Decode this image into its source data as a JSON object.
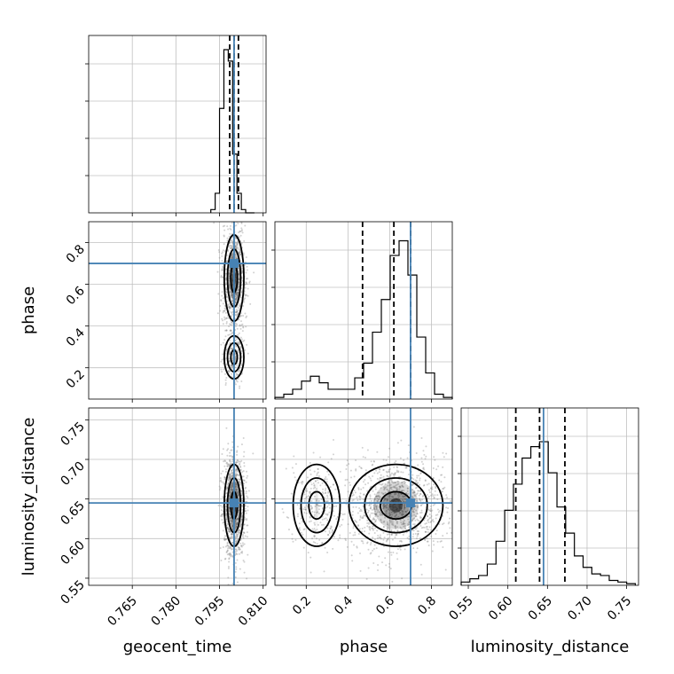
{
  "chart_data": {
    "type": "corner",
    "parameters": [
      "geocent_time",
      "phase",
      "luminosity_distance"
    ],
    "colors": {
      "truth": "#4682b4",
      "hist": "#000000",
      "grid": "#c0c0c0",
      "samples": "#7f7f7f"
    },
    "truth": {
      "geocent_time": 0.8,
      "phase": 0.7,
      "luminosity_distance": 0.645
    },
    "quantiles": {
      "geocent_time": [
        0.7985,
        0.8,
        0.8015
      ],
      "phase": [
        0.47,
        0.62,
        0.7
      ],
      "luminosity_distance": [
        0.61,
        0.64,
        0.672
      ]
    },
    "axes": {
      "geocent_time": {
        "range": [
          0.75,
          0.811
        ],
        "ticks": [
          "0.765",
          "0.780",
          "0.795",
          "0.810"
        ],
        "tick_values": [
          0.765,
          0.78,
          0.795,
          0.81
        ],
        "label": "geocent_time"
      },
      "phase": {
        "range": [
          0.05,
          0.9
        ],
        "ticks": [
          "0.2",
          "0.4",
          "0.6",
          "0.8"
        ],
        "tick_values": [
          0.2,
          0.4,
          0.6,
          0.8
        ],
        "label": "phase"
      },
      "luminosity_distance": {
        "range": [
          0.541,
          0.765
        ],
        "ticks": [
          "0.55",
          "0.60",
          "0.65",
          "0.70",
          "0.75"
        ],
        "tick_values": [
          0.55,
          0.6,
          0.65,
          0.7,
          0.75
        ],
        "label": "luminosity_distance"
      }
    },
    "histograms": {
      "geocent_time": {
        "edges": [
          0.792,
          0.7935,
          0.795,
          0.7965,
          0.798,
          0.7995,
          0.801,
          0.8025,
          0.804,
          0.8055,
          0.807
        ],
        "counts": [
          0.02,
          0.12,
          0.64,
          1.0,
          0.93,
          0.36,
          0.12,
          0.02,
          0.0,
          0.0
        ]
      },
      "phase": {
        "edges": [
          0.05,
          0.0925,
          0.135,
          0.1775,
          0.22,
          0.2625,
          0.305,
          0.3475,
          0.39,
          0.4325,
          0.475,
          0.5175,
          0.56,
          0.6025,
          0.645,
          0.6875,
          0.73,
          0.7725,
          0.815,
          0.8575,
          0.9
        ],
        "counts": [
          0.01,
          0.03,
          0.06,
          0.11,
          0.14,
          0.1,
          0.06,
          0.06,
          0.06,
          0.13,
          0.22,
          0.41,
          0.61,
          0.88,
          0.97,
          0.76,
          0.38,
          0.16,
          0.03,
          0.01
        ]
      },
      "luminosity_distance": {
        "edges": [
          0.541,
          0.552,
          0.563,
          0.574,
          0.585,
          0.596,
          0.607,
          0.618,
          0.629,
          0.64,
          0.651,
          0.662,
          0.673,
          0.684,
          0.695,
          0.706,
          0.717,
          0.728,
          0.739,
          0.75,
          0.761
        ],
        "counts": [
          0.02,
          0.04,
          0.06,
          0.13,
          0.27,
          0.46,
          0.62,
          0.78,
          0.85,
          0.88,
          0.69,
          0.48,
          0.32,
          0.18,
          0.11,
          0.07,
          0.06,
          0.03,
          0.02,
          0.01
        ]
      }
    },
    "density_modes": [
      {
        "pair": [
          "geocent_time",
          "phase"
        ],
        "center": [
          0.8,
          0.63
        ],
        "sigma": [
          0.0018,
          0.12
        ],
        "weight": 0.82
      },
      {
        "pair": [
          "geocent_time",
          "phase"
        ],
        "center": [
          0.8,
          0.25
        ],
        "sigma": [
          0.0018,
          0.06
        ],
        "weight": 0.18
      },
      {
        "pair": [
          "geocent_time",
          "luminosity_distance"
        ],
        "center": [
          0.8,
          0.642
        ],
        "sigma": [
          0.0018,
          0.03
        ],
        "weight": 1.0
      },
      {
        "pair": [
          "phase",
          "luminosity_distance"
        ],
        "center": [
          0.63,
          0.642
        ],
        "sigma": [
          0.12,
          0.03
        ],
        "weight": 0.82
      },
      {
        "pair": [
          "phase",
          "luminosity_distance"
        ],
        "center": [
          0.25,
          0.642
        ],
        "sigma": [
          0.06,
          0.03
        ],
        "weight": 0.18
      }
    ]
  }
}
